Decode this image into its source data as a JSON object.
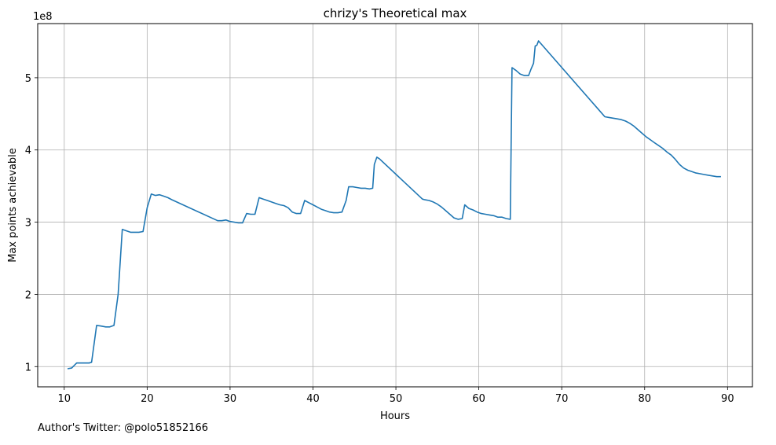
{
  "chart_data": {
    "type": "line",
    "title": "chrizy's Theoretical max",
    "xlabel": "Hours",
    "ylabel": "Max points achievable",
    "y_multiplier_label": "1e8",
    "xlim": [
      6.8,
      93.0
    ],
    "ylim": [
      0.72,
      5.75
    ],
    "x_ticks": [
      10,
      20,
      30,
      40,
      50,
      60,
      70,
      80,
      90
    ],
    "y_ticks": [
      1,
      2,
      3,
      4,
      5
    ],
    "grid": true,
    "line_color": "#1f77b4",
    "series": [
      {
        "x": [
          10.4,
          10.9,
          11.5,
          12.0,
          12.5,
          13.0,
          13.3,
          13.9,
          14.5,
          15.0,
          15.5,
          16.0,
          16.5,
          17.0,
          17.5,
          18.0,
          18.5,
          19.0,
          19.5,
          20.0,
          20.5,
          21.0,
          21.5,
          22.0,
          22.5,
          23.0,
          28.5,
          29.0,
          29.5,
          30.0,
          30.5,
          31.0,
          31.5,
          32.0,
          32.5,
          33.0,
          33.5,
          34.0,
          34.5,
          35.0,
          35.5,
          36.0,
          36.5,
          37.0,
          37.5,
          38.0,
          38.5,
          39.0,
          39.5,
          40.0,
          40.5,
          41.0,
          41.5,
          42.0,
          42.5,
          43.0,
          43.5,
          44.0,
          44.3,
          44.8,
          45.3,
          45.8,
          46.3,
          46.8,
          47.2,
          47.4,
          47.7,
          48.0,
          53.2,
          53.5,
          54.0,
          54.5,
          55.0,
          55.5,
          56.0,
          56.5,
          57.0,
          57.5,
          58.0,
          58.3,
          58.8,
          59.3,
          59.8,
          60.3,
          60.8,
          61.3,
          61.8,
          62.3,
          62.8,
          63.3,
          63.8,
          64.0,
          64.5,
          65.0,
          65.5,
          66.0,
          66.3,
          66.6,
          66.8,
          67.0,
          67.2,
          75.2,
          75.7,
          76.2,
          76.7,
          77.2,
          77.7,
          78.2,
          78.7,
          79.2,
          79.7,
          80.2,
          80.7,
          81.2,
          81.7,
          82.2,
          82.7,
          83.2,
          83.7,
          84.2,
          84.7,
          85.2,
          85.7,
          86.2,
          86.7,
          87.2,
          87.7,
          88.2,
          88.7,
          89.2
        ],
        "y": [
          0.97,
          0.98,
          1.05,
          1.05,
          1.05,
          1.05,
          1.06,
          1.57,
          1.56,
          1.55,
          1.55,
          1.57,
          2.0,
          2.9,
          2.88,
          2.86,
          2.86,
          2.86,
          2.87,
          3.2,
          3.39,
          3.37,
          3.38,
          3.36,
          3.34,
          3.31,
          3.02,
          3.02,
          3.03,
          3.01,
          3.0,
          2.99,
          2.99,
          3.12,
          3.11,
          3.11,
          3.34,
          3.32,
          3.3,
          3.28,
          3.26,
          3.24,
          3.23,
          3.2,
          3.14,
          3.12,
          3.12,
          3.3,
          3.27,
          3.24,
          3.21,
          3.18,
          3.16,
          3.14,
          3.13,
          3.13,
          3.14,
          3.3,
          3.49,
          3.49,
          3.48,
          3.47,
          3.47,
          3.46,
          3.47,
          3.8,
          3.9,
          3.88,
          3.32,
          3.31,
          3.3,
          3.28,
          3.25,
          3.21,
          3.16,
          3.11,
          3.06,
          3.04,
          3.05,
          3.24,
          3.19,
          3.17,
          3.14,
          3.12,
          3.11,
          3.1,
          3.09,
          3.07,
          3.07,
          3.05,
          3.04,
          5.14,
          5.1,
          5.05,
          5.03,
          5.03,
          5.12,
          5.2,
          5.44,
          5.45,
          5.51,
          4.46,
          4.45,
          4.44,
          4.43,
          4.42,
          4.4,
          4.37,
          4.33,
          4.28,
          4.23,
          4.18,
          4.14,
          4.1,
          4.06,
          4.02,
          3.97,
          3.93,
          3.87,
          3.8,
          3.75,
          3.72,
          3.7,
          3.68,
          3.67,
          3.66,
          3.65,
          3.64,
          3.63,
          3.63
        ]
      }
    ]
  },
  "footer": {
    "author_note": "Author's Twitter: @polo51852166"
  }
}
